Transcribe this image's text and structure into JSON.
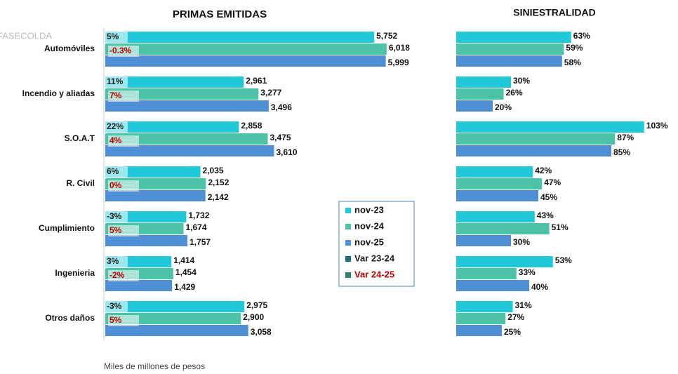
{
  "watermark": "FASECOLDA",
  "note": "Miles de millones de pesos",
  "chart_data": [
    {
      "type": "hbar",
      "title": "PRIMAS EMITIDAS",
      "categories": [
        "Automóviles",
        "Incendio y aliadas",
        "S.O.A.T",
        "R. Civil",
        "Cumplimiento",
        "Ingenieria",
        "Otros daños"
      ],
      "xlim": [
        0,
        6500
      ],
      "series": [
        {
          "name": "nov-23",
          "color": "#1fc9d8",
          "values": [
            5752,
            2961,
            2858,
            2035,
            1732,
            1414,
            2975
          ],
          "value_labels": [
            "5,752",
            "2,961",
            "2,858",
            "2,035",
            "1,732",
            "1,414",
            "2,975"
          ]
        },
        {
          "name": "nov-24",
          "color": "#4cc3a6",
          "values": [
            6018,
            3277,
            3475,
            2152,
            1674,
            1454,
            2900
          ],
          "value_labels": [
            "6,018",
            "3,277",
            "3,475",
            "2,152",
            "1,674",
            "1,454",
            "2,900"
          ]
        },
        {
          "name": "nov-25",
          "color": "#4f8fd8",
          "values": [
            5999,
            3496,
            3610,
            2142,
            1757,
            1429,
            3058
          ],
          "value_labels": [
            "5,999",
            "3,496",
            "3,610",
            "2,142",
            "1,757",
            "1,429",
            "3,058"
          ]
        }
      ],
      "variations": [
        {
          "name": "Var 23-24",
          "color": "#17706f",
          "text_color": "#222222",
          "values": [
            5,
            11,
            22,
            6,
            -3,
            3,
            -3
          ],
          "value_labels": [
            "5%",
            "11%",
            "22%",
            "6%",
            "-3%",
            "3%",
            "-3%"
          ]
        },
        {
          "name": "Var 24-25",
          "color": "#2f7f6c",
          "text_color": "#c00000",
          "values": [
            -0.3,
            7,
            4,
            0,
            5,
            -2,
            5
          ],
          "value_labels": [
            "-0.3%",
            "7%",
            "4%",
            "0%",
            "5%",
            "-2%",
            "5%"
          ]
        }
      ]
    },
    {
      "type": "hbar",
      "title": "SINIESTRALIDAD",
      "xlim": [
        0,
        120
      ],
      "series": [
        {
          "color": "#1fc9d8",
          "values": [
            63,
            30,
            103,
            42,
            43,
            53,
            31
          ],
          "value_labels": [
            "63%",
            "30%",
            "103%",
            "42%",
            "43%",
            "53%",
            "31%"
          ]
        },
        {
          "color": "#4cc3a6",
          "values": [
            59,
            26,
            87,
            47,
            51,
            33,
            27
          ],
          "value_labels": [
            "59%",
            "26%",
            "87%",
            "47%",
            "51%",
            "33%",
            "27%"
          ]
        },
        {
          "color": "#4f8fd8",
          "values": [
            58,
            20,
            85,
            45,
            30,
            40,
            25
          ],
          "value_labels": [
            "58%",
            "20%",
            "85%",
            "45%",
            "30%",
            "40%",
            "25%"
          ]
        }
      ]
    }
  ]
}
